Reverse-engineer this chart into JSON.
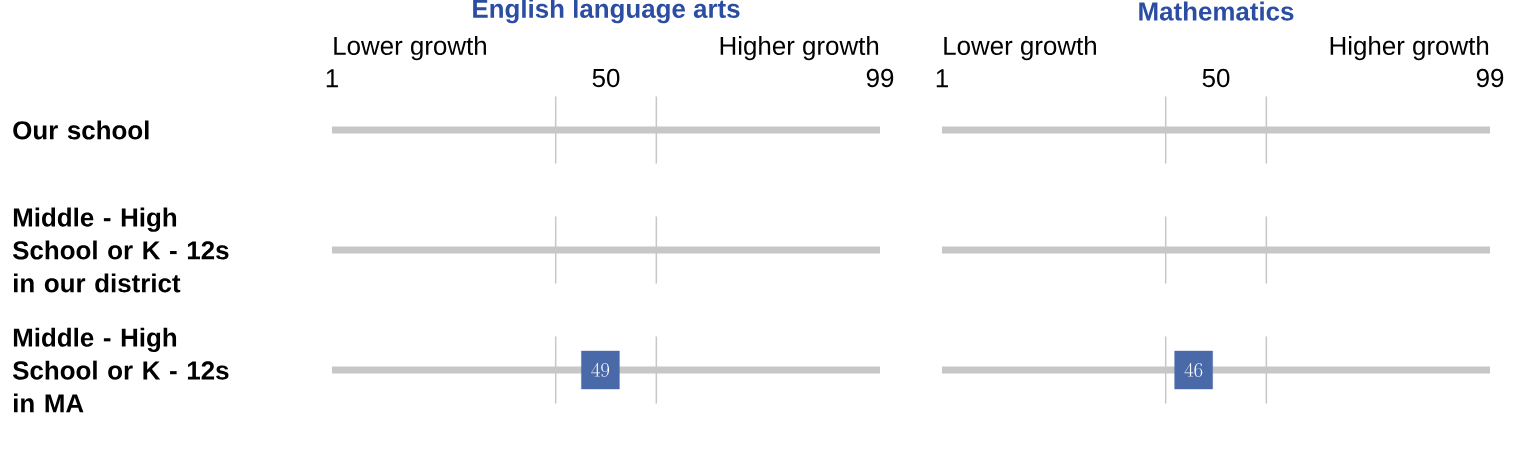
{
  "chart_data": [
    {
      "type": "scatter",
      "orientation": "horizontal",
      "title": "English language arts",
      "annotations": [
        "Lower growth",
        "Higher growth"
      ],
      "categories": [
        "Our school",
        "Middle - High School or K - 12s in our district",
        "Middle - High School or K - 12s in MA"
      ],
      "values": [
        null,
        null,
        49
      ],
      "color": "#4a69a9",
      "xlim": [
        1,
        99
      ],
      "xticks": [
        1,
        50,
        99
      ],
      "ref_lines": [
        {
          "axis": "x",
          "value": 41
        },
        {
          "axis": "x",
          "value": 59
        }
      ],
      "grid": "y",
      "marker": "square",
      "data_labels": true
    },
    {
      "type": "scatter",
      "orientation": "horizontal",
      "title": "Mathematics",
      "annotations": [
        "Lower growth",
        "Higher growth"
      ],
      "categories": [
        null,
        null,
        null
      ],
      "values": [
        null,
        null,
        46
      ],
      "color": "#4a69a9",
      "xlim": [
        1,
        99
      ],
      "xticks": [
        1,
        50,
        99
      ],
      "ref_lines": [
        {
          "axis": "x",
          "value": 41
        },
        {
          "axis": "x",
          "value": 59
        }
      ],
      "grid": "y",
      "marker": "square",
      "data_labels": true,
      "tick_labels": "x"
    }
  ]
}
